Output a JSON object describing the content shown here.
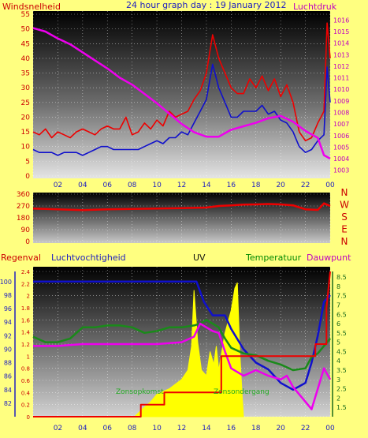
{
  "header": {
    "left_label": "Windsnelheid",
    "title": "24 hour graph day : 19 January 2012",
    "right_label": "Luchtdruk"
  },
  "colors": {
    "background": "#ffff80",
    "wind": "#ee0000",
    "gust": "#1010cc",
    "pressure": "#ee00ee",
    "direction": "#ee0000",
    "humidity": "#1010cc",
    "uv": "#ffff00",
    "temperature": "#1a8a1a",
    "dewpoint": "#ee00ee",
    "rain": "#ee0000",
    "label_blue": "#2020c0",
    "label_magenta": "#c000c0",
    "label_green": "#008800",
    "label_red": "#cc0000"
  },
  "chart_data": [
    {
      "type": "line",
      "title": "24 hour graph day : 19 January 2012",
      "x_ticks": [
        "02",
        "04",
        "06",
        "08",
        "10",
        "12",
        "14",
        "16",
        "18",
        "20",
        "22",
        "00"
      ],
      "xlim": [
        0,
        24
      ],
      "left_axis": {
        "label": "Windsnelheid",
        "ylim": [
          0,
          55
        ],
        "ticks": [
          "0",
          "5",
          "10",
          "15",
          "20",
          "25",
          "30",
          "35",
          "40",
          "45",
          "50",
          "55"
        ]
      },
      "right_axis": {
        "label": "Luchtdruk",
        "ylim": [
          1002.5,
          1016.5
        ],
        "ticks": [
          "1003",
          "1004",
          "1005",
          "1006",
          "1007",
          "1008",
          "1009",
          "1010",
          "1011",
          "1012",
          "1013",
          "1014",
          "1015",
          "1016"
        ]
      },
      "series": [
        {
          "key": "wind",
          "axis": "left",
          "x": [
            0,
            0.5,
            1,
            1.5,
            2,
            2.5,
            3,
            3.5,
            4,
            4.5,
            5,
            5.5,
            6,
            6.5,
            7,
            7.5,
            8,
            8.5,
            9,
            9.5,
            10,
            10.5,
            11,
            11.5,
            12,
            12.5,
            13,
            13.5,
            14,
            14.5,
            15,
            15.5,
            16,
            16.5,
            17,
            17.5,
            18,
            18.5,
            19,
            19.5,
            20,
            20.5,
            21,
            21.5,
            22,
            22.5,
            23,
            23.5,
            23.75,
            24
          ],
          "y": [
            15,
            14,
            16,
            13,
            15,
            14,
            13,
            15,
            16,
            15,
            14,
            16,
            17,
            16,
            16,
            20,
            14,
            15,
            18,
            16,
            19,
            17,
            22,
            20,
            21,
            22,
            26,
            29,
            35,
            48,
            40,
            35,
            30,
            28,
            28,
            33,
            30,
            34,
            29,
            33,
            27,
            31,
            25,
            15,
            12,
            13,
            18,
            22,
            52,
            40
          ]
        },
        {
          "key": "gust",
          "axis": "left",
          "x": [
            0,
            0.5,
            1,
            1.5,
            2,
            2.5,
            3,
            3.5,
            4,
            4.5,
            5,
            5.5,
            6,
            6.5,
            7,
            7.5,
            8,
            8.5,
            9,
            9.5,
            10,
            10.5,
            11,
            11.5,
            12,
            12.5,
            13,
            13.5,
            14,
            14.5,
            15,
            15.5,
            16,
            16.5,
            17,
            17.5,
            18,
            18.5,
            19,
            19.5,
            20,
            20.5,
            21,
            21.5,
            22,
            22.5,
            23,
            23.5,
            23.75,
            24
          ],
          "y": [
            9,
            8,
            8,
            8,
            7,
            8,
            8,
            8,
            7,
            8,
            9,
            10,
            10,
            9,
            9,
            9,
            9,
            9,
            10,
            11,
            12,
            11,
            13,
            13,
            15,
            14,
            18,
            22,
            26,
            38,
            30,
            25,
            20,
            20,
            22,
            22,
            22,
            24,
            21,
            22,
            19,
            18,
            15,
            10,
            8,
            9,
            12,
            14,
            37,
            25
          ]
        },
        {
          "key": "pressure",
          "axis": "right",
          "x": [
            0,
            1,
            2,
            3,
            4,
            5,
            6,
            7,
            8,
            9,
            10,
            11,
            12,
            13,
            14,
            15,
            16,
            17,
            18,
            19,
            20,
            21,
            22,
            23,
            23.5,
            24
          ],
          "y": [
            1015.3,
            1015,
            1014.4,
            1013.9,
            1013.2,
            1012.5,
            1011.8,
            1011,
            1010.4,
            1009.6,
            1008.8,
            1007.9,
            1007,
            1006.3,
            1005.9,
            1005.9,
            1006.5,
            1006.8,
            1007.1,
            1007.5,
            1007.7,
            1007.2,
            1006.4,
            1005.8,
            1004.3,
            1004
          ]
        }
      ]
    },
    {
      "type": "line",
      "ylim": [
        0,
        360
      ],
      "y_ticks": [
        "0",
        "90",
        "180",
        "270",
        "360"
      ],
      "direction_labels": [
        "N",
        "W",
        "S",
        "E",
        "N"
      ],
      "series": [
        {
          "key": "direction",
          "x": [
            0,
            2,
            4,
            6,
            8,
            10,
            12,
            14,
            15,
            16,
            17,
            18,
            19,
            20,
            21,
            22,
            23,
            23.5,
            24
          ],
          "y": [
            250,
            245,
            238,
            245,
            248,
            250,
            253,
            258,
            270,
            275,
            280,
            282,
            285,
            282,
            275,
            245,
            240,
            290,
            270
          ]
        }
      ]
    },
    {
      "type": "line",
      "labels": {
        "rain": "Regenval",
        "humidity": "Luchtvochtigheid",
        "uv": "UV",
        "temperature": "Temperatuur",
        "dewpoint": "Dauwpunt"
      },
      "annotations": {
        "sunrise": "Zonsopkomst",
        "sunset": "Zonsondergang"
      },
      "rain_axis": {
        "ylim": [
          0,
          2.4
        ],
        "ticks": [
          "0",
          "0.2",
          "0.4",
          "0.6",
          "0.8",
          "1",
          "1.2",
          "1.4",
          "1.6",
          "1.8",
          "2",
          "2.2",
          "2.4"
        ]
      },
      "humidity_axis": {
        "ylim": [
          80,
          101.5
        ],
        "ticks": [
          "82",
          "84",
          "86",
          "88",
          "90",
          "92",
          "94",
          "96",
          "98",
          "100"
        ]
      },
      "temp_axis": {
        "ylim": [
          1,
          8.8
        ],
        "ticks": [
          "1.5",
          "2",
          "2.5",
          "3",
          "3.5",
          "4",
          "4.5",
          "5",
          "5.5",
          "6",
          "6.5",
          "7",
          "7.5",
          "8",
          "8.5"
        ]
      },
      "series": [
        {
          "key": "humidity",
          "axis": "humidity",
          "x": [
            0,
            2,
            4,
            6,
            8,
            10,
            12,
            13.2,
            13.8,
            14.5,
            15.5,
            16,
            17,
            18,
            19,
            20,
            21,
            22,
            22.5,
            23,
            23.5,
            24
          ],
          "y": [
            100,
            100,
            100,
            100,
            100,
            100,
            100,
            100,
            97,
            95,
            95,
            93,
            90,
            88,
            87,
            85,
            84,
            85,
            88,
            92,
            97,
            98
          ]
        },
        {
          "key": "uv",
          "axis": "temp",
          "x": [
            8.2,
            8.8,
            9.5,
            10,
            11,
            12,
            12.5,
            12.8,
            13,
            13.3,
            13.6,
            14,
            14.3,
            14.6,
            14.8,
            15,
            15.5,
            16,
            16.3,
            16.5,
            16.7,
            16.9,
            17
          ],
          "y": [
            1,
            1.4,
            1.8,
            2.2,
            2.5,
            3,
            3.5,
            4.8,
            7.8,
            5,
            3.5,
            3.2,
            4.5,
            3.8,
            4.8,
            3.5,
            5.5,
            6.7,
            7.9,
            8.2,
            4.5,
            2,
            1
          ]
        },
        {
          "key": "temperature",
          "axis": "temp",
          "x": [
            0,
            1,
            2,
            3,
            4,
            5,
            6,
            7,
            8,
            9,
            10,
            11,
            12,
            13,
            13.5,
            14,
            14.5,
            15,
            15.5,
            16,
            17,
            18,
            19,
            20,
            21,
            22,
            22.5,
            23,
            23.5,
            24
          ],
          "y": [
            5.3,
            5,
            5,
            5.2,
            5.8,
            5.8,
            5.9,
            5.9,
            5.8,
            5.5,
            5.6,
            5.8,
            5.8,
            5.9,
            6,
            6.2,
            6,
            5.8,
            5.2,
            4.7,
            4.4,
            4.3,
            4,
            3.8,
            3.5,
            3.6,
            4.2,
            4.4,
            4.8,
            5.2
          ]
        },
        {
          "key": "dewpoint",
          "axis": "temp",
          "x": [
            0,
            2,
            4,
            6,
            8,
            10,
            12,
            13,
            13.5,
            14,
            14.5,
            15,
            15.5,
            16,
            17,
            18,
            19,
            20,
            20.5,
            21,
            22,
            22.5,
            23,
            23.5,
            24
          ],
          "y": [
            4.8,
            4.8,
            4.9,
            4.9,
            4.9,
            4.9,
            5.0,
            5.3,
            6.0,
            5.8,
            5.6,
            5.5,
            4.5,
            3.6,
            3.2,
            3.5,
            3.2,
            3.0,
            3.2,
            2.6,
            1.8,
            1.4,
            2.5,
            3.6,
            3.0
          ]
        },
        {
          "key": "rain",
          "axis": "rain",
          "x": [
            0,
            8.7,
            8.7,
            10.6,
            10.6,
            15.2,
            15.2,
            21.2,
            21.2,
            22.8,
            22.8,
            23.7,
            23.7,
            24
          ],
          "y": [
            0,
            0,
            0.2,
            0.2,
            0.4,
            0.4,
            1.0,
            1.0,
            1.0,
            1.0,
            1.2,
            1.2,
            1.8,
            2.4
          ]
        }
      ]
    }
  ]
}
